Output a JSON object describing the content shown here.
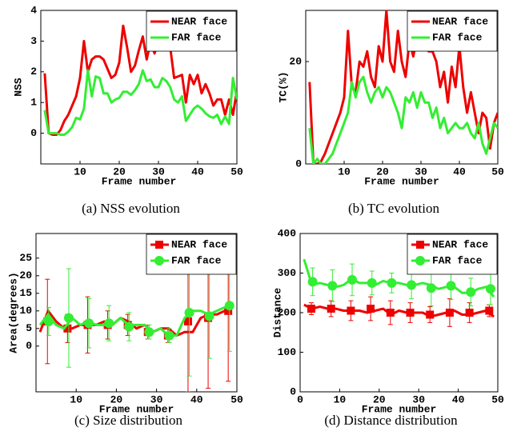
{
  "chart_data": [
    {
      "type": "line",
      "caption": "(a) NSS evolution",
      "xlabel": "Frame number",
      "ylabel": "NSS",
      "x": [
        1,
        2,
        3,
        4,
        5,
        6,
        7,
        8,
        9,
        10,
        11,
        12,
        13,
        14,
        15,
        16,
        17,
        18,
        19,
        20,
        21,
        22,
        23,
        24,
        25,
        26,
        27,
        28,
        29,
        30,
        31,
        32,
        33,
        34,
        35,
        36,
        37,
        38,
        39,
        40,
        41,
        42,
        43,
        44,
        45,
        46,
        47,
        48,
        49,
        50
      ],
      "xlim": [
        0,
        50
      ],
      "xticks": [
        10,
        20,
        30,
        40,
        50
      ],
      "ylim": [
        -1,
        4
      ],
      "yticks": [
        0,
        1,
        2,
        3,
        4
      ],
      "legend": "upper right",
      "series": [
        {
          "name": "NEAR face",
          "color": "#ee0000",
          "values": [
            1.95,
            0,
            -0.05,
            -0.05,
            0.1,
            0.4,
            0.6,
            0.9,
            1.2,
            1.8,
            3.0,
            2.0,
            2.4,
            2.5,
            2.5,
            2.4,
            2.1,
            1.8,
            1.9,
            2.3,
            3.5,
            2.8,
            2.0,
            2.2,
            2.7,
            3.15,
            2.4,
            3.0,
            2.6,
            3.0,
            2.75,
            2.8,
            2.8,
            1.8,
            1.85,
            1.9,
            1.0,
            1.9,
            1.6,
            1.9,
            1.3,
            1.6,
            1.3,
            0.9,
            1.1,
            1.1,
            0.6,
            1.1,
            0.6,
            1.4
          ]
        },
        {
          "name": "FAR face",
          "color": "#33ee33",
          "values": [
            0.75,
            0,
            0,
            0,
            -0.05,
            -0.05,
            0.05,
            0.2,
            0.5,
            0.45,
            0.8,
            2.05,
            1.2,
            1.85,
            1.8,
            1.3,
            1.3,
            1.0,
            1.1,
            1.15,
            1.35,
            1.35,
            1.25,
            1.4,
            1.6,
            2.05,
            1.7,
            1.75,
            1.5,
            1.5,
            1.8,
            1.7,
            1.5,
            1.1,
            1.0,
            1.2,
            0.4,
            0.6,
            0.8,
            0.9,
            0.8,
            0.65,
            0.55,
            0.5,
            0.6,
            0.3,
            0.55,
            0.3,
            1.8,
            1.1
          ]
        }
      ]
    },
    {
      "type": "line",
      "caption": "(b) TC evolution",
      "xlabel": "Frame number",
      "ylabel": "TC(%)",
      "x": [
        1,
        2,
        3,
        4,
        5,
        6,
        7,
        8,
        9,
        10,
        11,
        12,
        13,
        14,
        15,
        16,
        17,
        18,
        19,
        20,
        21,
        22,
        23,
        24,
        25,
        26,
        27,
        28,
        29,
        30,
        31,
        32,
        33,
        34,
        35,
        36,
        37,
        38,
        39,
        40,
        41,
        42,
        43,
        44,
        45,
        46,
        47,
        48,
        49,
        50
      ],
      "xlim": [
        0,
        50
      ],
      "xticks": [
        10,
        20,
        30,
        40,
        50
      ],
      "ylim": [
        0,
        30
      ],
      "yticks": [
        0,
        20
      ],
      "legend": "upper right",
      "series": [
        {
          "name": "NEAR face",
          "color": "#ee0000",
          "values": [
            16,
            0,
            0,
            0.5,
            2,
            4,
            6,
            8,
            10,
            13,
            26,
            15,
            14,
            20,
            19,
            22,
            17,
            15,
            23,
            20,
            30,
            20,
            18,
            26,
            20,
            17,
            24,
            21,
            25,
            24,
            23,
            22,
            22,
            20,
            15,
            18,
            12,
            19,
            15,
            23,
            15,
            10,
            14,
            10,
            6,
            10,
            9,
            3,
            8,
            10
          ]
        },
        {
          "name": "FAR face",
          "color": "#33ee33",
          "values": [
            7,
            0,
            1,
            0,
            0,
            1,
            2,
            4,
            6,
            8,
            10,
            16,
            13,
            16,
            17,
            14,
            12,
            14,
            15,
            13,
            15,
            14,
            12,
            10,
            7,
            13,
            12,
            14,
            11,
            14,
            12,
            12,
            9,
            11,
            7,
            9,
            6,
            7,
            8,
            7,
            7,
            8,
            6,
            5,
            8,
            4,
            2,
            5,
            8,
            7
          ]
        }
      ]
    },
    {
      "type": "errorline",
      "caption": "(c) Size distribution",
      "xlabel": "Frame number",
      "ylabel": "Area(degrees)",
      "x": [
        1,
        3,
        5,
        7,
        9,
        11,
        13,
        15,
        17,
        19,
        21,
        23,
        25,
        27,
        29,
        31,
        33,
        35,
        37,
        39,
        41,
        43,
        45,
        47,
        49
      ],
      "xlim": [
        0,
        50
      ],
      "xticks": [
        10,
        20,
        30,
        40,
        50
      ],
      "ylim": [
        -13,
        32
      ],
      "yticks": [
        0,
        5,
        10,
        15,
        20,
        25
      ],
      "legend": "upper right",
      "series": [
        {
          "name": "NEAR face",
          "color": "#ee0000",
          "marker": "square",
          "values": [
            4,
            10,
            7,
            5,
            5,
            6,
            6,
            6,
            7,
            6,
            8,
            7,
            5,
            6,
            4,
            5,
            5,
            3,
            4,
            4,
            8,
            9,
            9,
            10,
            12
          ],
          "marker_x": [
            3,
            8,
            13,
            18,
            23,
            28,
            33,
            38,
            43,
            48
          ],
          "marker_values": [
            7,
            5,
            6,
            6,
            6,
            4,
            3,
            7,
            8,
            10
          ],
          "errors": [
            12,
            4,
            8,
            4,
            3,
            2,
            2,
            20,
            20,
            20
          ]
        },
        {
          "name": "FAR face",
          "color": "#33ee33",
          "marker": "circle",
          "values": [
            6,
            9,
            6,
            5,
            8,
            6,
            7,
            6,
            6,
            6,
            8,
            6,
            6,
            6,
            4,
            5,
            3,
            3,
            8,
            10,
            10,
            9,
            10,
            11,
            11
          ],
          "marker_x": [
            3,
            8,
            13,
            18,
            23,
            28,
            33,
            38,
            43,
            48
          ],
          "marker_values": [
            7,
            8,
            6.5,
            6.5,
            5.5,
            4,
            3,
            9.5,
            8.5,
            11.5
          ],
          "errors": [
            4,
            14,
            7,
            5,
            4,
            2,
            2,
            18,
            12,
            13
          ]
        }
      ]
    },
    {
      "type": "errorline",
      "caption": "(d) Distance distribution",
      "xlabel": "Frame number",
      "ylabel": "Distance",
      "x": [
        1,
        3,
        5,
        7,
        9,
        11,
        13,
        15,
        17,
        19,
        21,
        23,
        25,
        27,
        29,
        31,
        33,
        35,
        37,
        39,
        41,
        43,
        45,
        47,
        49
      ],
      "xlim": [
        0,
        50
      ],
      "xticks": [
        0,
        10,
        20,
        30,
        40,
        50
      ],
      "ylim": [
        0,
        400
      ],
      "yticks": [
        0,
        100,
        200,
        300,
        400
      ],
      "legend": "upper right",
      "series": [
        {
          "name": "NEAR face",
          "color": "#ee0000",
          "marker": "square",
          "values": [
            220,
            210,
            215,
            210,
            210,
            205,
            205,
            205,
            200,
            205,
            210,
            195,
            205,
            200,
            200,
            200,
            190,
            195,
            200,
            205,
            195,
            195,
            200,
            205,
            190
          ],
          "marker_x": [
            3,
            8,
            13,
            18,
            23,
            28,
            33,
            38,
            43,
            48
          ],
          "marker_values": [
            210,
            210,
            205,
            210,
            200,
            200,
            195,
            200,
            200,
            205
          ],
          "errors": [
            15,
            20,
            25,
            30,
            30,
            25,
            20,
            35,
            25,
            15
          ]
        },
        {
          "name": "FAR face",
          "color": "#33ee33",
          "marker": "circle",
          "values": [
            335,
            270,
            275,
            270,
            265,
            270,
            285,
            275,
            275,
            270,
            280,
            275,
            275,
            270,
            270,
            275,
            270,
            260,
            265,
            265,
            250,
            250,
            260,
            265,
            240
          ],
          "marker_x": [
            3,
            8,
            13,
            18,
            23,
            28,
            33,
            38,
            43,
            48
          ],
          "marker_values": [
            278,
            268,
            283,
            275,
            275,
            270,
            262,
            268,
            252,
            260
          ],
          "errors": [
            35,
            40,
            40,
            30,
            25,
            35,
            45,
            35,
            35,
            40
          ]
        }
      ]
    }
  ]
}
